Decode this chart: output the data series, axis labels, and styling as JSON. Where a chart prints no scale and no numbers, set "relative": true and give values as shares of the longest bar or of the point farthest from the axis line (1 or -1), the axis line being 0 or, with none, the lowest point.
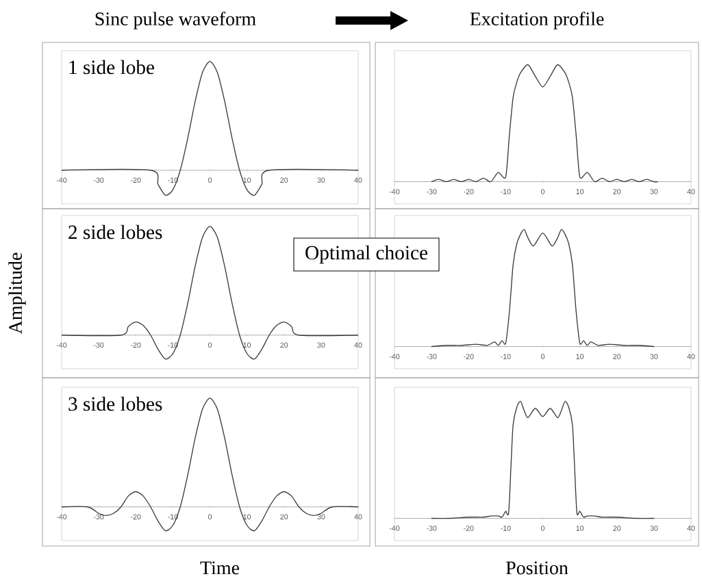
{
  "chart_data": [
    {
      "type": "line",
      "title": "Sinc pulse waveform",
      "relative": true,
      "color": "#3a3a3a",
      "xlim": [
        -40,
        40
      ],
      "xticks": [
        -40,
        -30,
        -20,
        -10,
        0,
        10,
        20,
        30,
        40
      ],
      "tick_labels": "x",
      "annotations": [
        "1 side lobe"
      ],
      "x": [
        -40,
        -16,
        -14,
        -12,
        -10,
        -8,
        -6,
        -4,
        -2,
        0,
        2,
        4,
        6,
        8,
        10,
        12,
        14,
        16,
        40
      ],
      "values": [
        0,
        0,
        -0.13,
        -0.23,
        -0.18,
        0,
        0.29,
        0.63,
        0.9,
        1,
        0.9,
        0.63,
        0.29,
        0,
        -0.18,
        -0.23,
        -0.13,
        0,
        0
      ]
    },
    {
      "type": "line",
      "title": "Excitation profile",
      "relative": true,
      "color": "#3a3a3a",
      "xlim": [
        -40,
        40
      ],
      "xticks": [
        -40,
        -30,
        -20,
        -10,
        0,
        10,
        20,
        30,
        40
      ],
      "tick_labels": "x",
      "x": [
        -30,
        -28,
        -26,
        -24,
        -22,
        -20,
        -18,
        -16,
        -14,
        -12,
        -10,
        -9,
        -8,
        -7,
        -6,
        -4,
        -2,
        0,
        2,
        4,
        6,
        7,
        8,
        9,
        10,
        12,
        14,
        16,
        18,
        20,
        22,
        24,
        26,
        28,
        30,
        31
      ],
      "values": [
        0,
        0.02,
        0,
        0.02,
        0,
        0.02,
        0,
        0.03,
        0,
        0.08,
        0.04,
        0.4,
        0.72,
        0.85,
        0.93,
        1,
        0.9,
        0.81,
        0.9,
        1,
        0.93,
        0.85,
        0.72,
        0.4,
        0.04,
        0.08,
        0,
        0.03,
        0,
        0.02,
        0,
        0.02,
        0,
        0.02,
        0,
        0
      ]
    },
    {
      "type": "line",
      "ylabel": "Amplitude",
      "relative": true,
      "color": "#3a3a3a",
      "xlim": [
        -40,
        40
      ],
      "xticks": [
        -40,
        -30,
        -20,
        -10,
        0,
        10,
        20,
        30,
        40
      ],
      "tick_labels": "x",
      "annotations": [
        "2 side lobes"
      ],
      "x": [
        -40,
        -24,
        -22,
        -20,
        -18,
        -16,
        -14,
        -12,
        -10,
        -8,
        -6,
        -4,
        -2,
        0,
        2,
        4,
        6,
        8,
        10,
        12,
        14,
        16,
        18,
        20,
        22,
        24,
        40
      ],
      "values": [
        0,
        0,
        0.08,
        0.12,
        0.09,
        0,
        -0.13,
        -0.22,
        -0.17,
        0,
        0.29,
        0.63,
        0.9,
        1,
        0.9,
        0.63,
        0.29,
        0,
        -0.17,
        -0.22,
        -0.13,
        0,
        0.09,
        0.12,
        0.08,
        0,
        0
      ]
    },
    {
      "type": "line",
      "relative": true,
      "color": "#3a3a3a",
      "xlim": [
        -40,
        40
      ],
      "xticks": [
        -40,
        -30,
        -20,
        -10,
        0,
        10,
        20,
        30,
        40
      ],
      "tick_labels": "x",
      "annotations": [
        "Optimal choice"
      ],
      "x": [
        -30,
        -26,
        -22,
        -18,
        -15,
        -13,
        -12,
        -11,
        -10,
        -9,
        -8,
        -7,
        -6,
        -5,
        -4,
        -2.5,
        0,
        2.5,
        4,
        5,
        6,
        7,
        8,
        9,
        10,
        11,
        12,
        13,
        15,
        18,
        22,
        26,
        30
      ],
      "values": [
        0,
        0.01,
        0.01,
        0.02,
        0.01,
        0.04,
        0.01,
        0.05,
        0.03,
        0.3,
        0.7,
        0.88,
        0.96,
        1,
        0.93,
        0.86,
        0.97,
        0.86,
        0.93,
        1,
        0.96,
        0.88,
        0.7,
        0.3,
        0.03,
        0.05,
        0.01,
        0.04,
        0.01,
        0.02,
        0.01,
        0.01,
        0
      ]
    },
    {
      "type": "line",
      "xlabel": "Time",
      "relative": true,
      "color": "#3a3a3a",
      "xlim": [
        -40,
        40
      ],
      "xticks": [
        -40,
        -30,
        -20,
        -10,
        0,
        10,
        20,
        30,
        40
      ],
      "tick_labels": "x",
      "annotations": [
        "3 side lobes"
      ],
      "x": [
        -40,
        -33,
        -30,
        -28,
        -26,
        -24,
        -22,
        -20,
        -18,
        -16,
        -14,
        -12,
        -10,
        -8,
        -6,
        -4,
        -2,
        0,
        2,
        4,
        6,
        8,
        10,
        12,
        14,
        16,
        18,
        20,
        22,
        24,
        26,
        28,
        30,
        33,
        40
      ],
      "values": [
        0,
        0,
        -0.06,
        -0.08,
        -0.06,
        0,
        0.1,
        0.14,
        0.1,
        0,
        -0.13,
        -0.22,
        -0.17,
        0,
        0.29,
        0.63,
        0.9,
        1,
        0.9,
        0.63,
        0.29,
        0,
        -0.17,
        -0.22,
        -0.13,
        0,
        0.1,
        0.14,
        0.1,
        0,
        -0.06,
        -0.08,
        -0.06,
        0,
        0
      ]
    },
    {
      "type": "line",
      "xlabel": "Position",
      "relative": true,
      "color": "#3a3a3a",
      "xlim": [
        -40,
        40
      ],
      "xticks": [
        -40,
        -30,
        -20,
        -10,
        0,
        10,
        20,
        30,
        40
      ],
      "tick_labels": "x",
      "x": [
        -30,
        -25,
        -20,
        -16,
        -14,
        -12,
        -11,
        -10,
        -9.2,
        -8.5,
        -8,
        -7,
        -6,
        -5,
        -4,
        -2,
        0,
        2,
        4,
        5,
        6,
        7,
        8,
        8.5,
        9.2,
        10,
        11,
        12,
        14,
        16,
        20,
        25,
        30
      ],
      "values": [
        0,
        0,
        0.01,
        0.01,
        0.02,
        0.02,
        0.01,
        0.06,
        0.05,
        0.5,
        0.8,
        0.95,
        1,
        0.92,
        0.86,
        0.94,
        0.87,
        0.94,
        0.86,
        0.92,
        1,
        0.95,
        0.8,
        0.5,
        0.05,
        0.06,
        0.01,
        0.02,
        0.02,
        0.01,
        0.01,
        0,
        0
      ]
    }
  ]
}
